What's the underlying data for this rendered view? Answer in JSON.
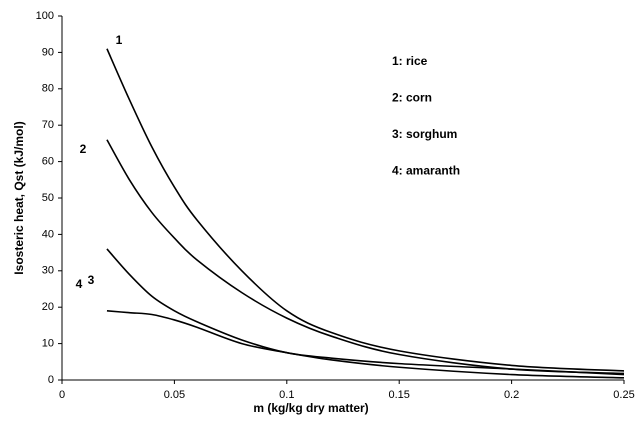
{
  "chart_data": {
    "type": "line",
    "xlabel": "m (kg/kg dry matter)",
    "ylabel": "Isosteric heat, Qst (kJ/mol)",
    "x": [
      0.02,
      0.03,
      0.04,
      0.05,
      0.06,
      0.08,
      0.1,
      0.12,
      0.15,
      0.2,
      0.25
    ],
    "series": [
      {
        "name": "1: rice",
        "color": "#000000",
        "values": [
          91,
          77,
          64,
          53,
          44,
          30,
          19,
          13,
          8,
          4,
          2.5
        ]
      },
      {
        "name": "2: corn",
        "color": "#000000",
        "values": [
          66,
          55,
          46,
          39,
          33,
          24,
          17,
          12,
          7,
          3,
          1.8
        ]
      },
      {
        "name": "3: sorghum",
        "color": "#000000",
        "values": [
          36,
          29,
          23,
          19,
          16,
          11,
          7.5,
          6,
          4.5,
          3,
          1.5
        ]
      },
      {
        "name": "4: amaranth",
        "color": "#000000",
        "values": [
          19,
          18.5,
          18,
          16.5,
          14.5,
          10,
          7.5,
          5.5,
          3.5,
          1.5,
          0.6
        ]
      }
    ],
    "annotations": [
      "1",
      "2",
      "3",
      "4"
    ],
    "xlim": [
      0,
      0.25
    ],
    "xticks": [
      0,
      0.05,
      0.1,
      0.15,
      0.2,
      0.25
    ],
    "ylim": [
      0,
      100
    ],
    "yticks": [
      0,
      10,
      20,
      30,
      40,
      50,
      60,
      70,
      80,
      90,
      100
    ],
    "grid": false
  }
}
